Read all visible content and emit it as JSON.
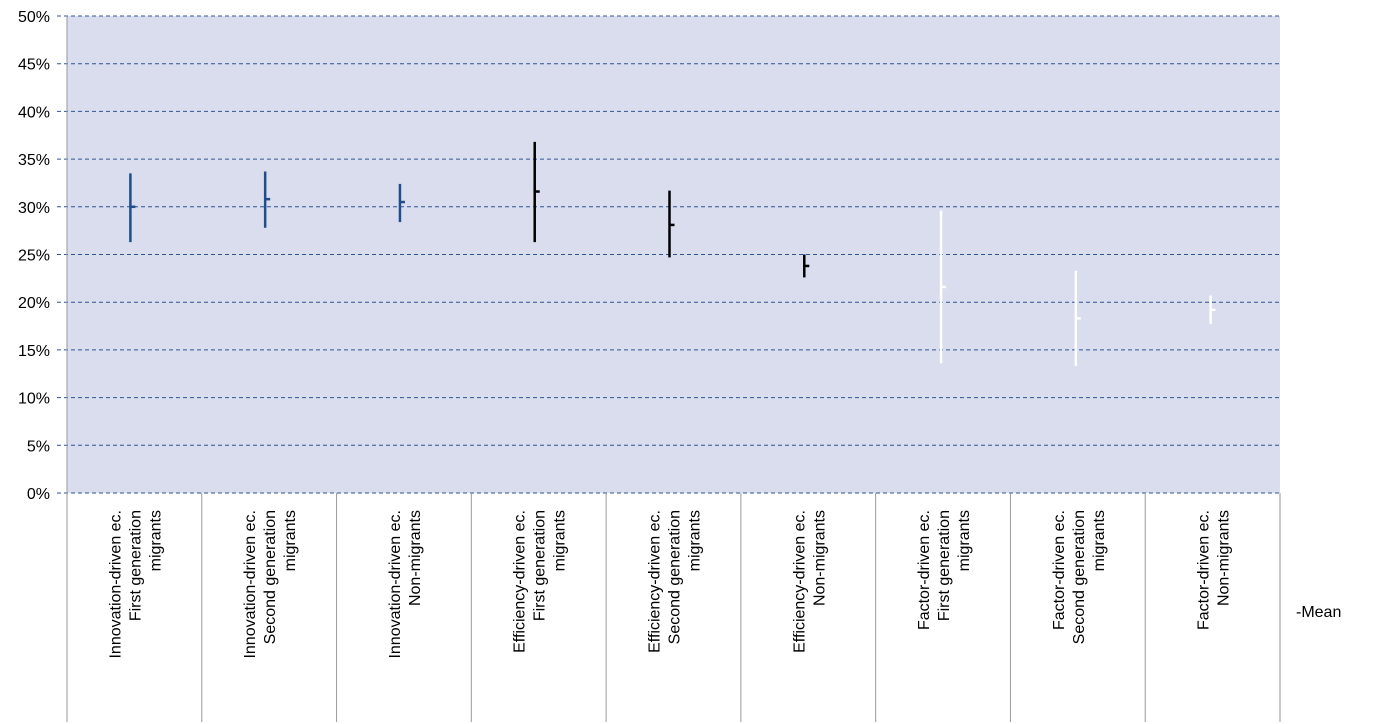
{
  "chart_data": {
    "type": "error-bar",
    "title": "",
    "xlabel": "",
    "ylabel": "",
    "ylim": [
      0,
      50
    ],
    "y_unit": "%",
    "y_ticks": [
      "0%",
      "5%",
      "10%",
      "15%",
      "20%",
      "25%",
      "30%",
      "35%",
      "40%",
      "45%",
      "50%"
    ],
    "grid": true,
    "plot_background": "#d9dded",
    "gridline_color": "#2f5597",
    "legend": {
      "label": "-Mean",
      "placement": "right"
    },
    "categories": [
      [
        "Innovation-driven ec.",
        "First generation",
        "migrants"
      ],
      [
        "Innovation-driven ec.",
        "Second generation",
        "migrants"
      ],
      [
        "Innovation-driven ec.",
        "Non-migrants"
      ],
      [
        "Efficiency-driven ec.",
        "First generation",
        "migrants"
      ],
      [
        "Efficiency-driven ec.",
        "Second generation",
        "migrants"
      ],
      [
        "Efficiency-driven ec.",
        "Non-migrants"
      ],
      [
        "Factor-driven ec.",
        "First generation",
        "migrants"
      ],
      [
        "Factor-driven ec.",
        "Second generation",
        "migrants"
      ],
      [
        "Factor-driven ec.",
        "Non-migrants"
      ]
    ],
    "series": [
      {
        "low": 26.3,
        "high": 33.5,
        "mean": 30.0,
        "color": "#1f4e8c"
      },
      {
        "low": 27.8,
        "high": 33.7,
        "mean": 30.8,
        "color": "#1f4e8c"
      },
      {
        "low": 28.4,
        "high": 32.4,
        "mean": 30.5,
        "color": "#1f4e8c"
      },
      {
        "low": 26.3,
        "high": 36.8,
        "mean": 31.6,
        "color": "#000000"
      },
      {
        "low": 24.7,
        "high": 31.7,
        "mean": 28.1,
        "color": "#000000"
      },
      {
        "low": 22.6,
        "high": 25.0,
        "mean": 23.8,
        "color": "#000000"
      },
      {
        "low": 13.6,
        "high": 29.6,
        "mean": 21.6,
        "color": "#ffffff"
      },
      {
        "low": 13.3,
        "high": 23.3,
        "mean": 18.3,
        "color": "#ffffff"
      },
      {
        "low": 17.7,
        "high": 20.7,
        "mean": 19.2,
        "color": "#ffffff"
      }
    ]
  }
}
